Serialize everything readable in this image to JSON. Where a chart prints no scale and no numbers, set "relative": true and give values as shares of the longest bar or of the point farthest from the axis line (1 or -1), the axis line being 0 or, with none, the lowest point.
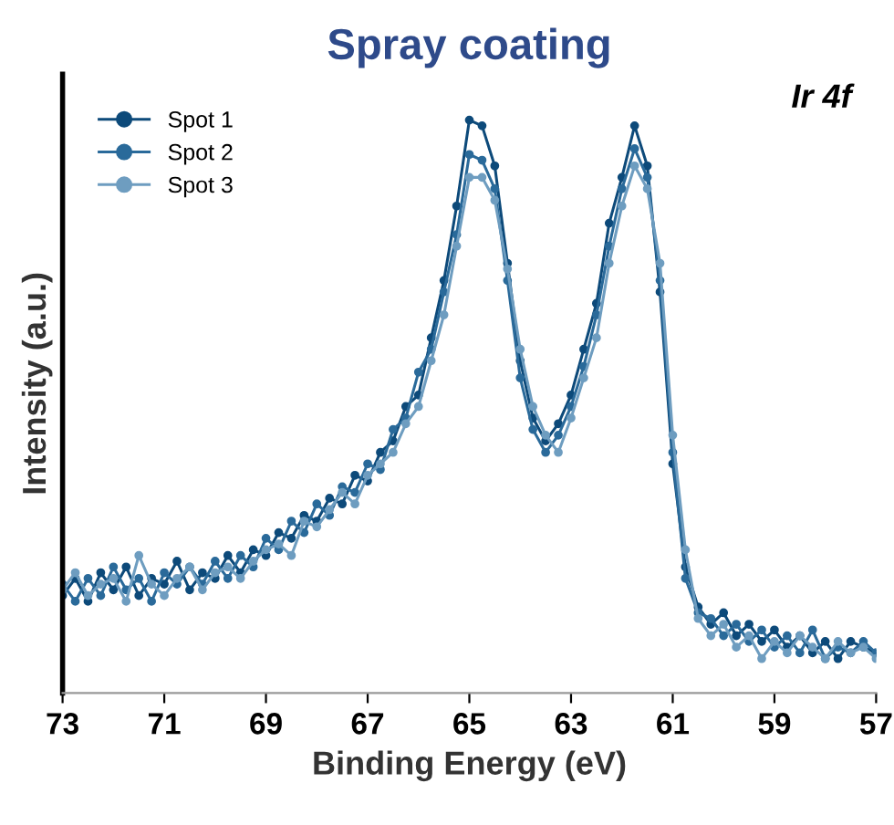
{
  "chart_data": {
    "type": "line",
    "title": "Spray coating",
    "xlabel": "Binding Energy (eV)",
    "ylabel": "Intensity (a.u.)",
    "annotations": [
      "Ir 4f"
    ],
    "relative": true,
    "x": [
      73,
      72.75,
      72.5,
      72.25,
      72,
      71.75,
      71.5,
      71.25,
      71,
      70.75,
      70.5,
      70.25,
      70,
      69.75,
      69.5,
      69.25,
      69,
      68.75,
      68.5,
      68.25,
      68,
      67.75,
      67.5,
      67.25,
      67,
      66.75,
      66.5,
      66.25,
      66,
      65.75,
      65.5,
      65.25,
      65,
      64.75,
      64.5,
      64.25,
      64,
      63.75,
      63.5,
      63.25,
      63,
      62.75,
      62.5,
      62.25,
      62,
      61.75,
      61.5,
      61.25,
      61,
      60.75,
      60.5,
      60.25,
      60,
      59.75,
      59.5,
      59.25,
      59,
      58.75,
      58.5,
      58.25,
      58,
      57.75,
      57.5,
      57.25,
      57
    ],
    "series": [
      {
        "name": "Spot 1",
        "color": "#0d4a7a",
        "values": [
          0.17,
          0.2,
          0.16,
          0.21,
          0.18,
          0.22,
          0.17,
          0.2,
          0.19,
          0.23,
          0.18,
          0.21,
          0.2,
          0.24,
          0.21,
          0.25,
          0.24,
          0.28,
          0.27,
          0.31,
          0.3,
          0.34,
          0.33,
          0.38,
          0.37,
          0.42,
          0.44,
          0.5,
          0.52,
          0.62,
          0.72,
          0.85,
          1.0,
          0.99,
          0.92,
          0.75,
          0.58,
          0.48,
          0.44,
          0.47,
          0.52,
          0.6,
          0.68,
          0.82,
          0.9,
          0.99,
          0.92,
          0.7,
          0.4,
          0.22,
          0.15,
          0.12,
          0.14,
          0.1,
          0.12,
          0.09,
          0.11,
          0.08,
          0.1,
          0.07,
          0.09,
          0.06,
          0.09,
          0.08,
          0.07
        ]
      },
      {
        "name": "Spot 2",
        "color": "#2a6a9a",
        "values": [
          0.19,
          0.16,
          0.2,
          0.17,
          0.22,
          0.18,
          0.2,
          0.16,
          0.21,
          0.19,
          0.22,
          0.19,
          0.23,
          0.2,
          0.24,
          0.22,
          0.27,
          0.25,
          0.3,
          0.28,
          0.33,
          0.31,
          0.36,
          0.35,
          0.4,
          0.39,
          0.46,
          0.48,
          0.56,
          0.6,
          0.7,
          0.8,
          0.94,
          0.93,
          0.88,
          0.72,
          0.55,
          0.46,
          0.42,
          0.45,
          0.5,
          0.57,
          0.66,
          0.78,
          0.88,
          0.95,
          0.9,
          0.72,
          0.42,
          0.2,
          0.14,
          0.13,
          0.1,
          0.12,
          0.09,
          0.11,
          0.08,
          0.1,
          0.07,
          0.11,
          0.06,
          0.08,
          0.07,
          0.09,
          0.07
        ]
      },
      {
        "name": "Spot 3",
        "color": "#6e9dc0",
        "values": [
          0.18,
          0.21,
          0.17,
          0.19,
          0.2,
          0.16,
          0.24,
          0.19,
          0.17,
          0.2,
          0.22,
          0.18,
          0.21,
          0.22,
          0.2,
          0.23,
          0.25,
          0.26,
          0.24,
          0.3,
          0.29,
          0.32,
          0.35,
          0.33,
          0.38,
          0.4,
          0.42,
          0.47,
          0.5,
          0.58,
          0.66,
          0.78,
          0.9,
          0.9,
          0.86,
          0.74,
          0.6,
          0.5,
          0.45,
          0.42,
          0.48,
          0.55,
          0.62,
          0.75,
          0.85,
          0.92,
          0.88,
          0.75,
          0.45,
          0.25,
          0.13,
          0.1,
          0.12,
          0.08,
          0.1,
          0.06,
          0.09,
          0.07,
          0.1,
          0.08,
          0.06,
          0.09,
          0.07,
          0.08,
          0.06
        ]
      }
    ],
    "xlim": [
      73,
      57
    ],
    "xticks": [
      73,
      71,
      69,
      67,
      65,
      63,
      61,
      59,
      57
    ],
    "legend": "top left",
    "marker": "circle",
    "line_style": "solid",
    "grid": false
  }
}
